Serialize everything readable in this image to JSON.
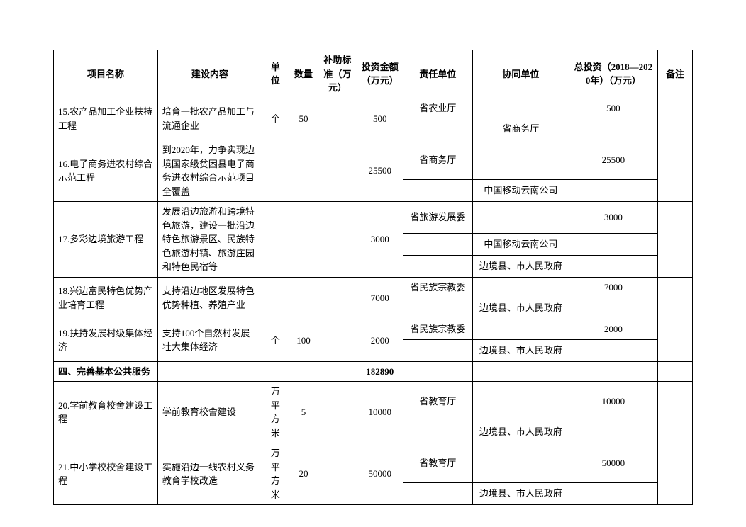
{
  "header": {
    "col0": "项目名称",
    "col1": "建设内容",
    "col2": "单位",
    "col3": "数量",
    "col4": "补助标准（万元）",
    "col5": "投资金额（万元）",
    "col6": "责任单位",
    "col7": "协同单位",
    "col8": "总投资（2018—2020年）（万元）",
    "col9": "备注"
  },
  "r15": {
    "name": "15.农产品加工企业扶持工程",
    "content": "培育一批农产品加工与流通企业",
    "unit": "个",
    "qty": "50",
    "invest": "500",
    "resp": "省农业厅",
    "coop": "省商务厅",
    "total": "500"
  },
  "r16": {
    "name": "16.电子商务进农村综合示范工程",
    "content": "到2020年，力争实现边境国家级贫困县电子商务进农村综合示范项目全覆盖",
    "invest": "25500",
    "resp": "省商务厅",
    "coop": "中国移动云南公司",
    "total": "25500"
  },
  "r17": {
    "name": "17.多彩边境旅游工程",
    "content": "发展沿边旅游和跨境特色旅游，建设一批沿边特色旅游景区、民族特色旅游村镇、旅游庄园和特色民宿等",
    "invest": "3000",
    "resp": "省旅游发展委",
    "coop1": "中国移动云南公司",
    "coop2": "边境县、市人民政府",
    "total": "3000"
  },
  "r18": {
    "name": "18.兴边富民特色优势产业培育工程",
    "content": "支持沿边地区发展特色优势种植、养殖产业",
    "invest": "7000",
    "resp": "省民族宗教委",
    "coop": "边境县、市人民政府",
    "total": "7000"
  },
  "r19": {
    "name": "19.扶持发展村级集体经济",
    "content": "支持100个自然村发展壮大集体经济",
    "unit": "个",
    "qty": "100",
    "invest": "2000",
    "resp": "省民族宗教委",
    "coop": "边境县、市人民政府",
    "total": "2000"
  },
  "section4": {
    "title": "四、完善基本公共服务",
    "invest": "182890"
  },
  "r20": {
    "name": "20.学前教育校舍建设工程",
    "content": "学前教育校舍建设",
    "unit": "万平方米",
    "qty": "5",
    "invest": "10000",
    "resp": "省教育厅",
    "coop": "边境县、市人民政府",
    "total": "10000"
  },
  "r21": {
    "name": "21.中小学校校舍建设工程",
    "content": "实施沿边一线农村义务教育学校改造",
    "unit": "万平方米",
    "qty": "20",
    "invest": "50000",
    "resp": "省教育厅",
    "coop": "边境县、市人民政府",
    "total": "50000"
  }
}
